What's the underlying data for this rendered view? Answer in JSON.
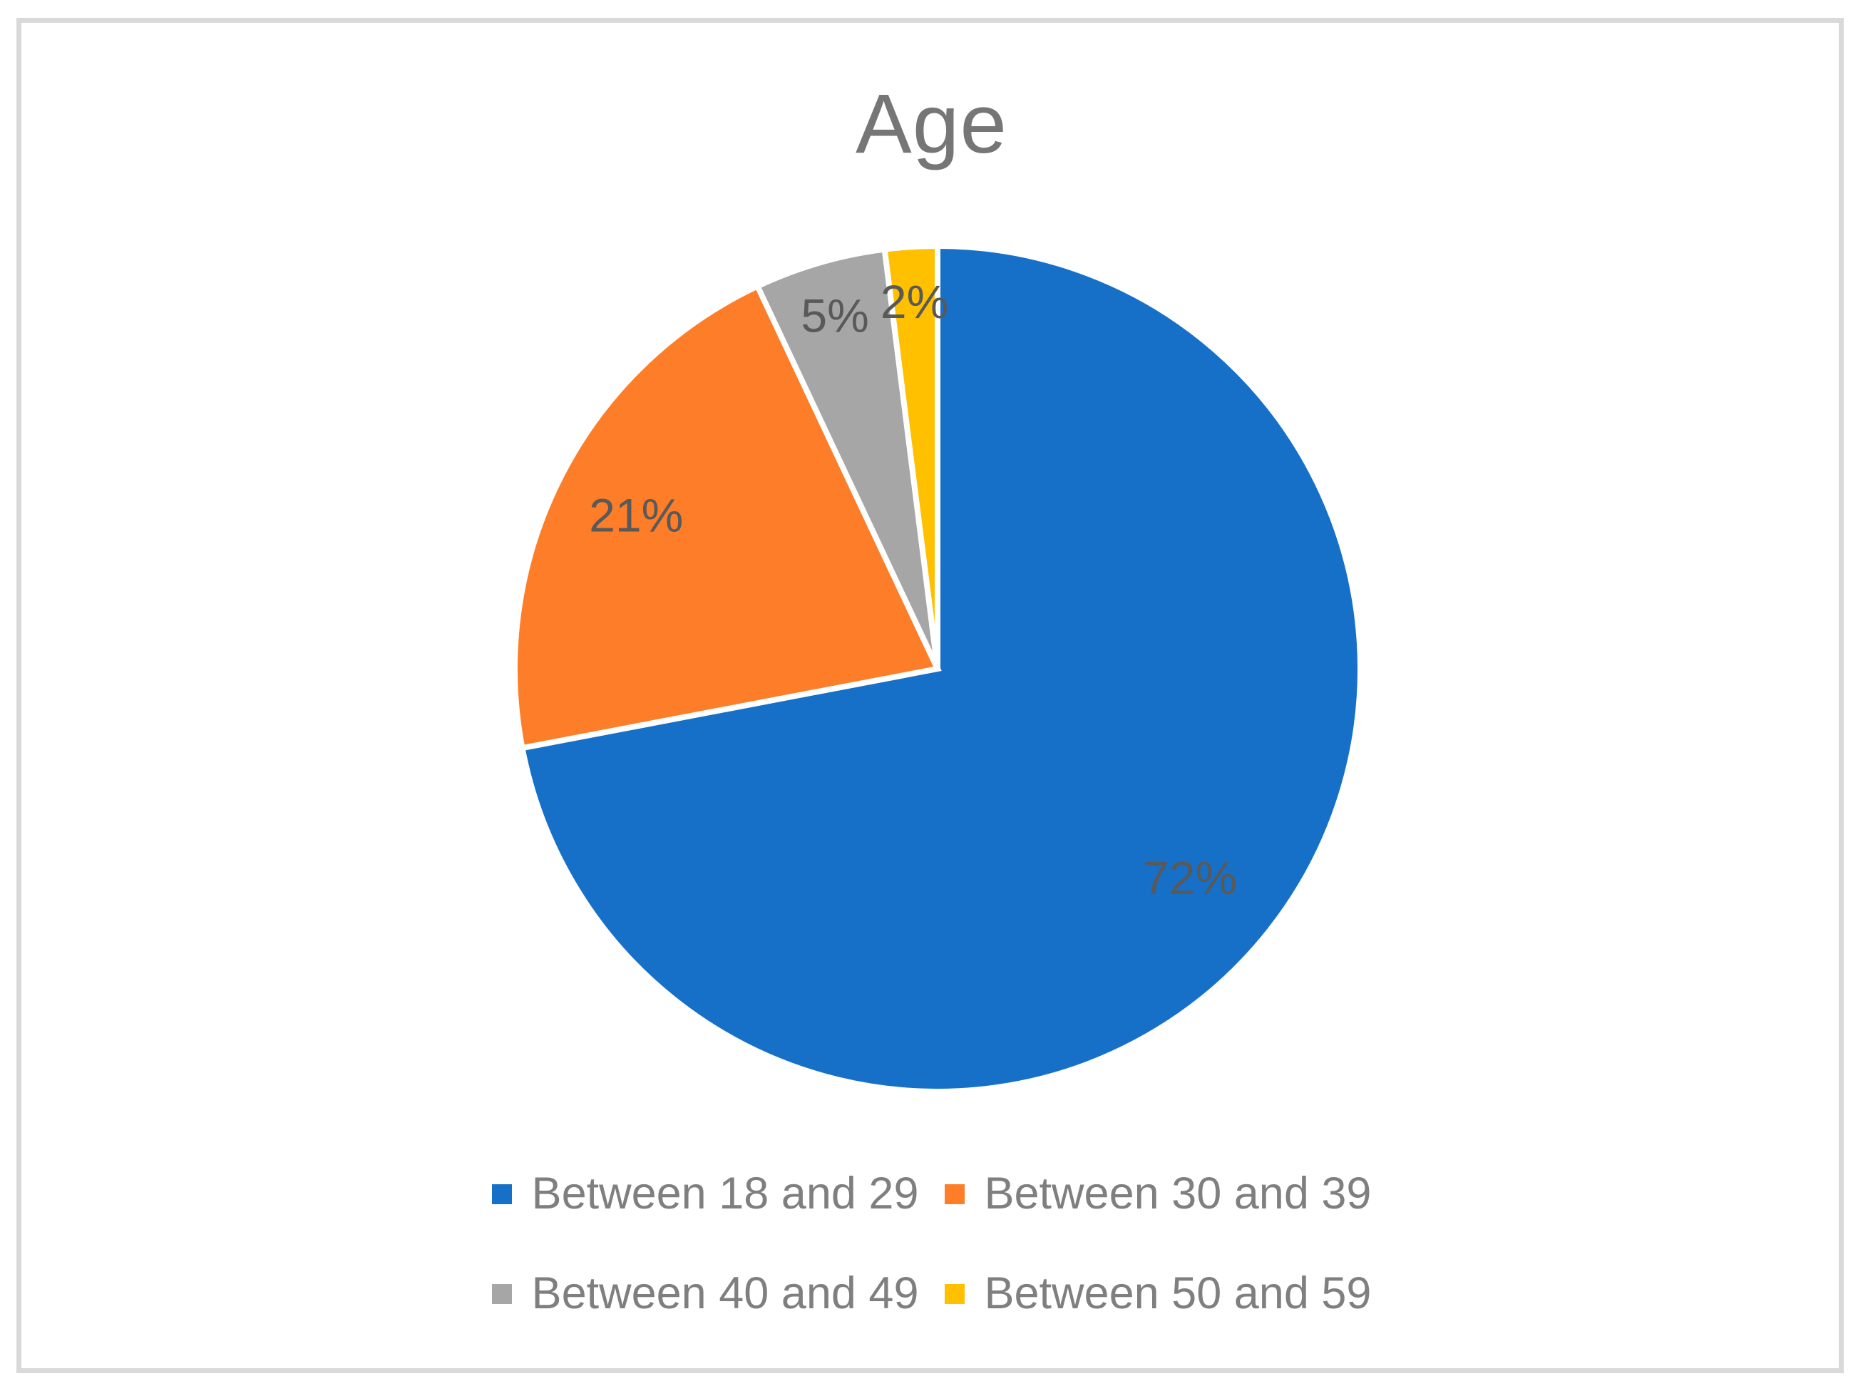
{
  "chart_data": {
    "type": "pie",
    "title": "Age",
    "categories": [
      "Between 18 and 29",
      "Between 30 and 39",
      "Between 40 and 49",
      "Between 50 and 59"
    ],
    "values": [
      72,
      21,
      5,
      2
    ],
    "data_labels": [
      "72%",
      "21%",
      "5%",
      "2%"
    ],
    "colors": [
      "#1770C8",
      "#FD7D28",
      "#A6A6A6",
      "#FFC000"
    ],
    "start_angle_deg": 0,
    "direction": "clockwise",
    "legend_position": "bottom",
    "legend_rows": [
      [
        0,
        1
      ],
      [
        2,
        3
      ]
    ]
  },
  "styles": {
    "background": "#FFFFFF",
    "frame_border_color": "#D9D9D9",
    "title_color": "#767676",
    "data_label_color": "#595959",
    "legend_text_color": "#7F7F7F",
    "slice_border_color": "#FFFFFF"
  }
}
